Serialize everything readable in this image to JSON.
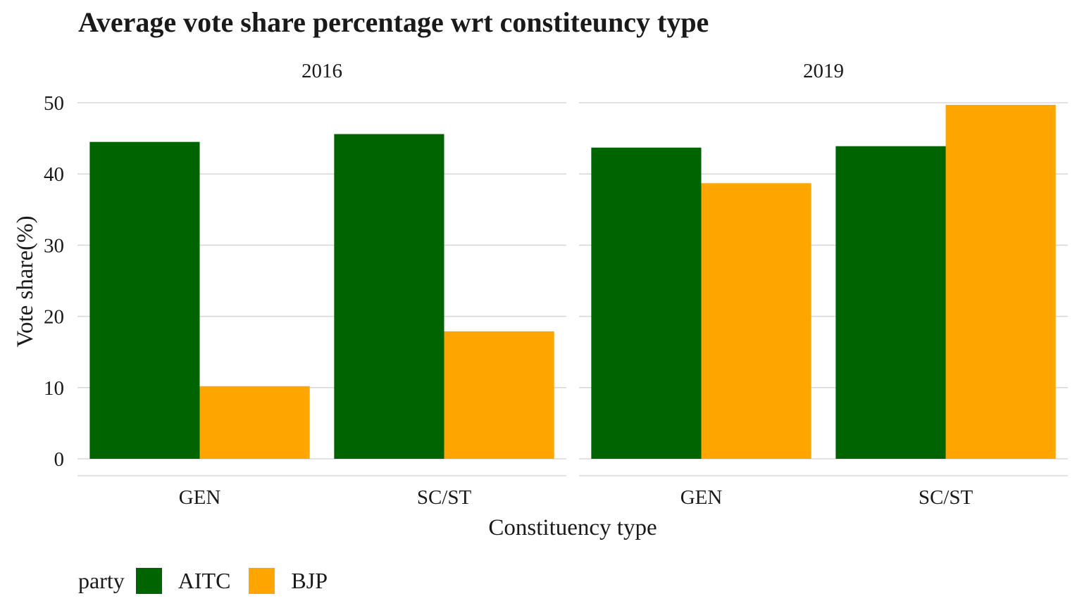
{
  "chart_data": {
    "type": "bar",
    "title": "Average vote share percentage wrt constiteuncy type",
    "xlabel": "Constituency type",
    "ylabel": "Vote share(%)",
    "ylim": [
      0,
      50
    ],
    "yticks": [
      0,
      10,
      20,
      30,
      40,
      50
    ],
    "grid": true,
    "categories": [
      "GEN",
      "SC/ST"
    ],
    "panels": [
      {
        "name": "2016",
        "series": [
          {
            "name": "AITC",
            "values": [
              44.5,
              45.6
            ]
          },
          {
            "name": "BJP",
            "values": [
              10.2,
              17.9
            ]
          }
        ]
      },
      {
        "name": "2019",
        "series": [
          {
            "name": "AITC",
            "values": [
              43.7,
              43.9
            ]
          },
          {
            "name": "BJP",
            "values": [
              38.7,
              49.7
            ]
          }
        ]
      }
    ],
    "legend": {
      "title": "party",
      "position": "bottom-left",
      "items": [
        {
          "label": "AITC",
          "color": "#006400"
        },
        {
          "label": "BJP",
          "color": "#FFA500"
        }
      ]
    }
  }
}
